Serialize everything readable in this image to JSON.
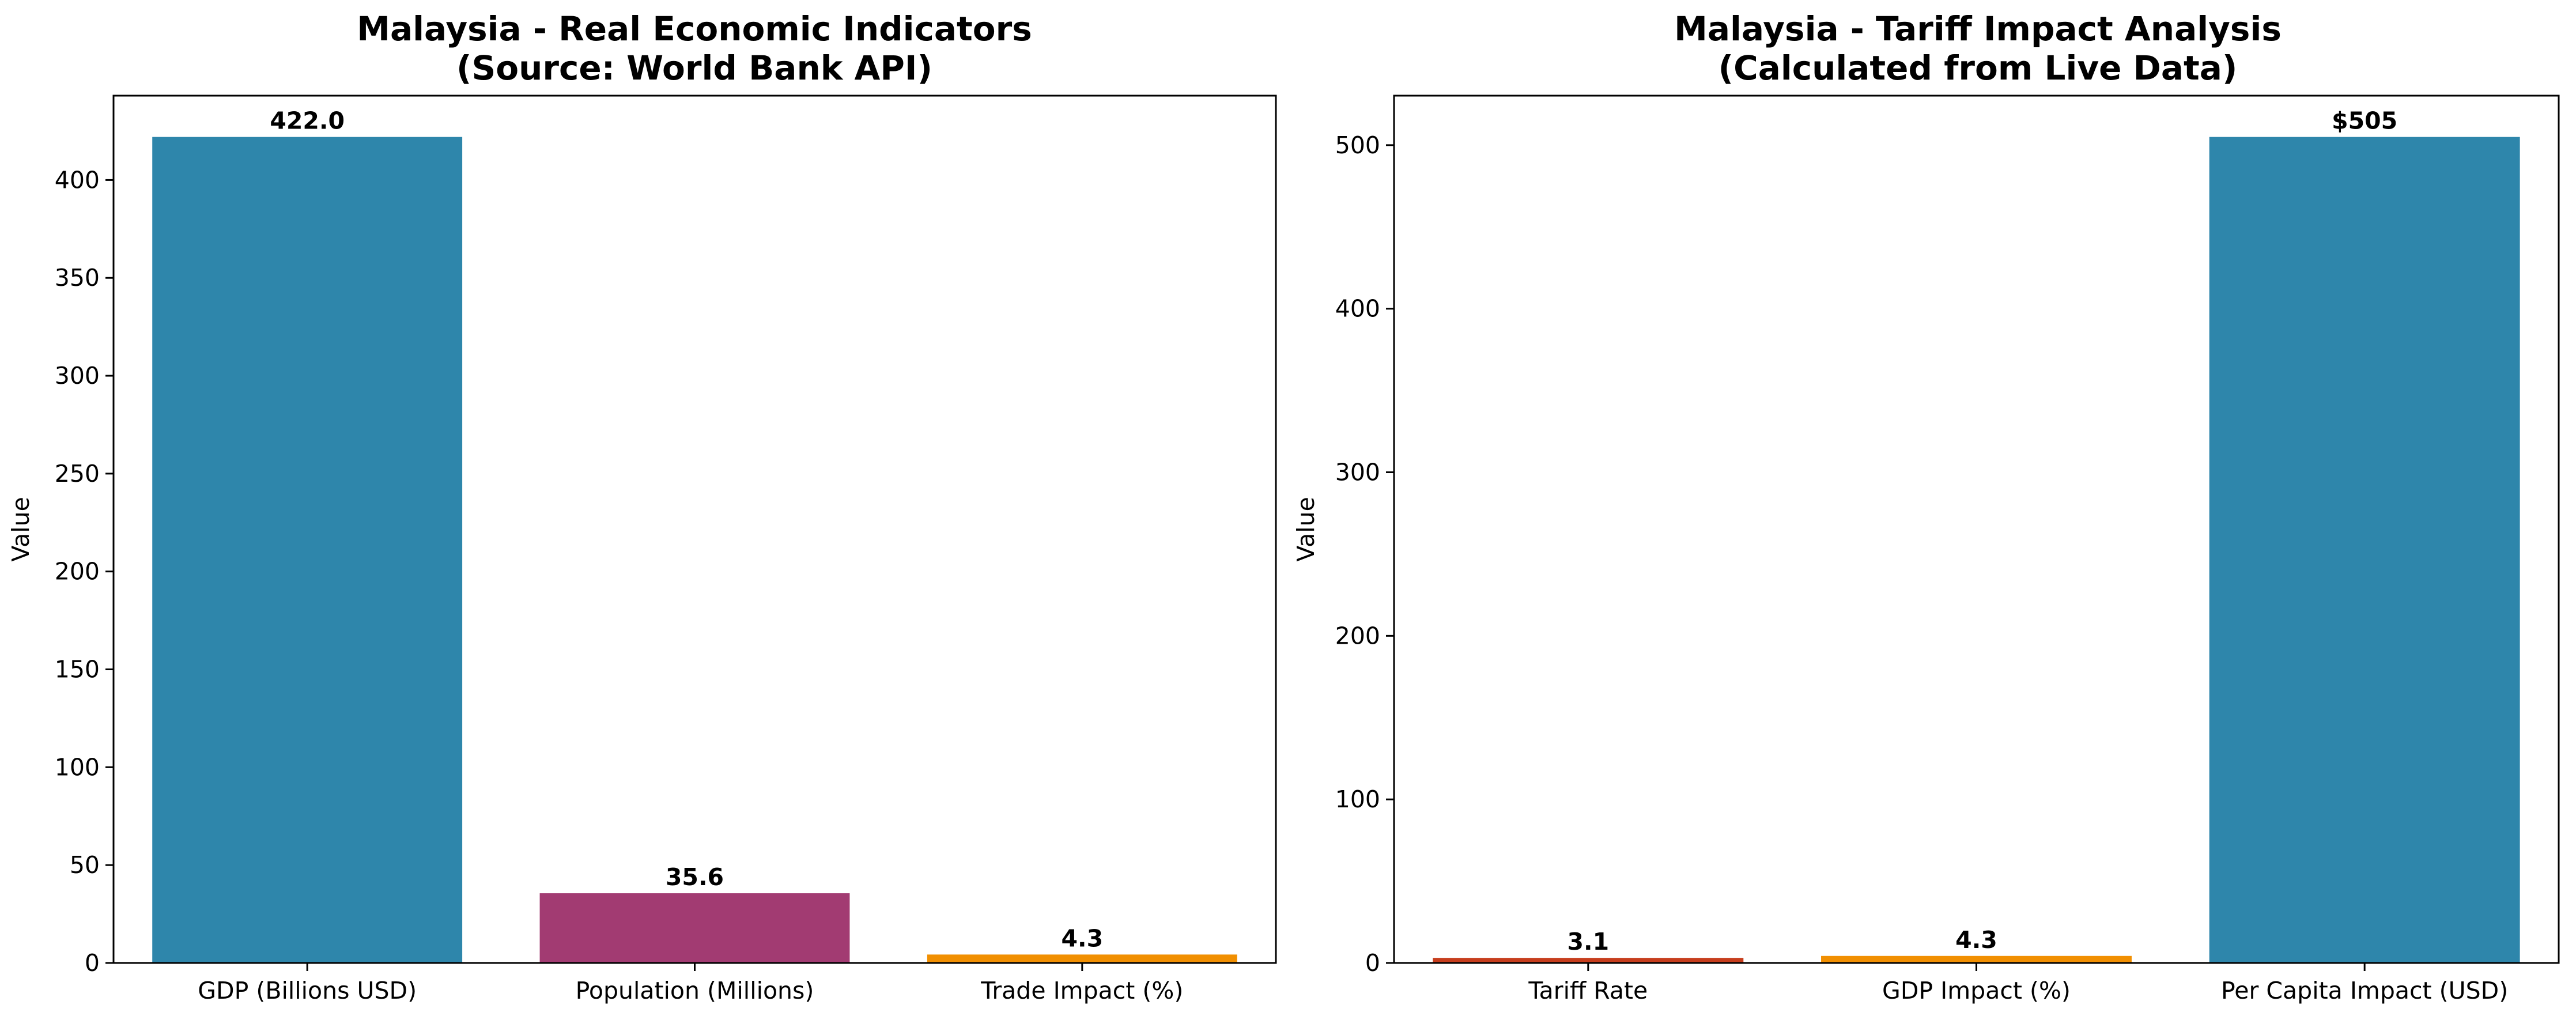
{
  "chart_data": [
    {
      "type": "bar",
      "title": "Malaysia - Real Economic Indicators\n(Source: World Bank API)",
      "title_lines": [
        "Malaysia - Real Economic Indicators",
        "(Source: World Bank API)"
      ],
      "xlabel": "",
      "ylabel": "Value",
      "categories": [
        "GDP (Billions USD)",
        "Population (Millions)",
        "Trade Impact (%)"
      ],
      "values": [
        422.0,
        35.6,
        4.3
      ],
      "value_labels": [
        "422.0",
        "35.6",
        "4.3"
      ],
      "colors": [
        "#2e86ab",
        "#a23b72",
        "#f18f01"
      ],
      "ylim": [
        0,
        443.1
      ],
      "yticks": [
        0,
        50,
        100,
        150,
        200,
        250,
        300,
        350,
        400
      ],
      "grid": false,
      "legend": "none"
    },
    {
      "type": "bar",
      "title": "Malaysia - Tariff Impact Analysis\n(Calculated from Live Data)",
      "title_lines": [
        "Malaysia - Tariff Impact Analysis",
        "(Calculated from Live Data)"
      ],
      "xlabel": "",
      "ylabel": "Value",
      "categories": [
        "Tariff Rate",
        "GDP Impact (%)",
        "Per Capita Impact (USD)"
      ],
      "values": [
        3.1,
        4.3,
        505
      ],
      "value_labels": [
        "3.1",
        "4.3",
        "$505"
      ],
      "colors": [
        "#c73e1d",
        "#f18f01",
        "#2e86ab"
      ],
      "ylim": [
        0,
        530.25
      ],
      "yticks": [
        0,
        100,
        200,
        300,
        400,
        500
      ],
      "grid": false,
      "legend": "none"
    }
  ]
}
